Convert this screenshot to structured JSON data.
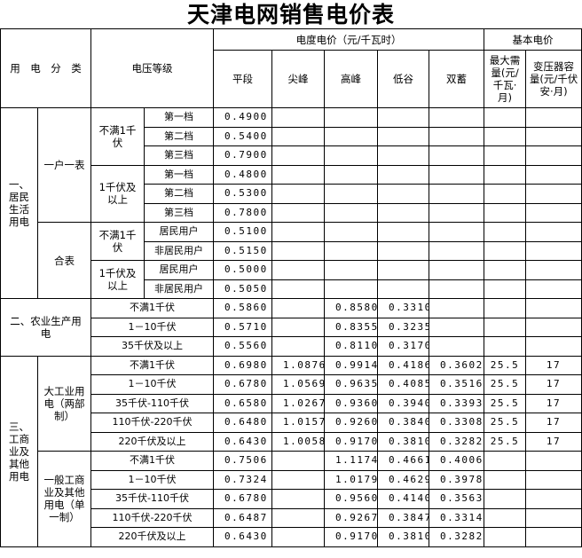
{
  "title": "天津电网销售电价表",
  "header": {
    "category": "用　电　分　类",
    "voltage": "电压等级",
    "energy_price": "电度电价（元/千瓦时）",
    "basic_price": "基本电价",
    "cols": [
      "平段",
      "尖峰",
      "高峰",
      "低谷",
      "双蓄",
      "最大需量(元/千瓦·月)",
      "变压器容量(元/千伏安·月)"
    ]
  },
  "residential": {
    "label": "一、居民生活用电",
    "one_meter": {
      "label": "一户一表",
      "groups": [
        {
          "voltage": "不满1千伏",
          "rows": [
            {
              "tier": "第一档",
              "values": [
                "0.4900",
                "",
                "",
                "",
                "",
                "",
                ""
              ]
            },
            {
              "tier": "第二档",
              "values": [
                "0.5400",
                "",
                "",
                "",
                "",
                "",
                ""
              ]
            },
            {
              "tier": "第三档",
              "values": [
                "0.7900",
                "",
                "",
                "",
                "",
                "",
                ""
              ]
            }
          ]
        },
        {
          "voltage": "1千伏及以上",
          "rows": [
            {
              "tier": "第一档",
              "values": [
                "0.4800",
                "",
                "",
                "",
                "",
                "",
                ""
              ]
            },
            {
              "tier": "第二档",
              "values": [
                "0.5300",
                "",
                "",
                "",
                "",
                "",
                ""
              ]
            },
            {
              "tier": "第三档",
              "values": [
                "0.7800",
                "",
                "",
                "",
                "",
                "",
                ""
              ]
            }
          ]
        }
      ]
    },
    "shared_meter": {
      "label": "合表",
      "groups": [
        {
          "voltage": "不满1千伏",
          "rows": [
            {
              "tier": "居民用户",
              "values": [
                "0.5100",
                "",
                "",
                "",
                "",
                "",
                ""
              ]
            },
            {
              "tier": "非居民用户",
              "values": [
                "0.5150",
                "",
                "",
                "",
                "",
                "",
                ""
              ]
            }
          ]
        },
        {
          "voltage": "1千伏及以上",
          "rows": [
            {
              "tier": "居民用户",
              "values": [
                "0.5000",
                "",
                "",
                "",
                "",
                "",
                ""
              ]
            },
            {
              "tier": "非居民用户",
              "values": [
                "0.5050",
                "",
                "",
                "",
                "",
                "",
                ""
              ]
            }
          ]
        }
      ]
    }
  },
  "agriculture": {
    "label": "二、农业生产用电",
    "rows": [
      {
        "voltage": "不满1千伏",
        "values": [
          "0.5860",
          "",
          "0.8580",
          "0.3310",
          "",
          "",
          ""
        ]
      },
      {
        "voltage": "1－10千伏",
        "values": [
          "0.5710",
          "",
          "0.8355",
          "0.3235",
          "",
          "",
          ""
        ]
      },
      {
        "voltage": "35千伏及以上",
        "values": [
          "0.5560",
          "",
          "0.8110",
          "0.3170",
          "",
          "",
          ""
        ]
      }
    ]
  },
  "industrial": {
    "label": "三、工商业及其他用电",
    "large": {
      "label": "大工业用电（两部制）",
      "rows": [
        {
          "voltage": "不满1千伏",
          "values": [
            "0.6980",
            "1.0876",
            "0.9914",
            "0.4186",
            "0.3602",
            "25.5",
            "17"
          ]
        },
        {
          "voltage": "1－10千伏",
          "values": [
            "0.6780",
            "1.0569",
            "0.9635",
            "0.4085",
            "0.3516",
            "25.5",
            "17"
          ]
        },
        {
          "voltage": "35千伏-110千伏",
          "values": [
            "0.6580",
            "1.0267",
            "0.9360",
            "0.3940",
            "0.3393",
            "25.5",
            "17"
          ]
        },
        {
          "voltage": "110千伏-220千伏",
          "values": [
            "0.6480",
            "1.0157",
            "0.9260",
            "0.3840",
            "0.3308",
            "25.5",
            "17"
          ]
        },
        {
          "voltage": "220千伏及以上",
          "values": [
            "0.6430",
            "1.0058",
            "0.9170",
            "0.3810",
            "0.3282",
            "25.5",
            "17"
          ]
        }
      ]
    },
    "general": {
      "label": "一般工商业及其他用电（单一制）",
      "rows": [
        {
          "voltage": "不满1千伏",
          "values": [
            "0.7506",
            "",
            "1.1174",
            "0.4661",
            "0.4006",
            "",
            ""
          ]
        },
        {
          "voltage": "1－10千伏",
          "values": [
            "0.7324",
            "",
            "1.0179",
            "0.4629",
            "0.3978",
            "",
            ""
          ]
        },
        {
          "voltage": "35千伏-110千伏",
          "values": [
            "0.6780",
            "",
            "0.9560",
            "0.4140",
            "0.3563",
            "",
            ""
          ]
        },
        {
          "voltage": "110千伏-220千伏",
          "values": [
            "0.6487",
            "",
            "0.9267",
            "0.3847",
            "0.3314",
            "",
            ""
          ]
        },
        {
          "voltage": "220千伏及以上",
          "values": [
            "0.6430",
            "",
            "0.9170",
            "0.3810",
            "0.3282",
            "",
            ""
          ]
        }
      ]
    }
  }
}
